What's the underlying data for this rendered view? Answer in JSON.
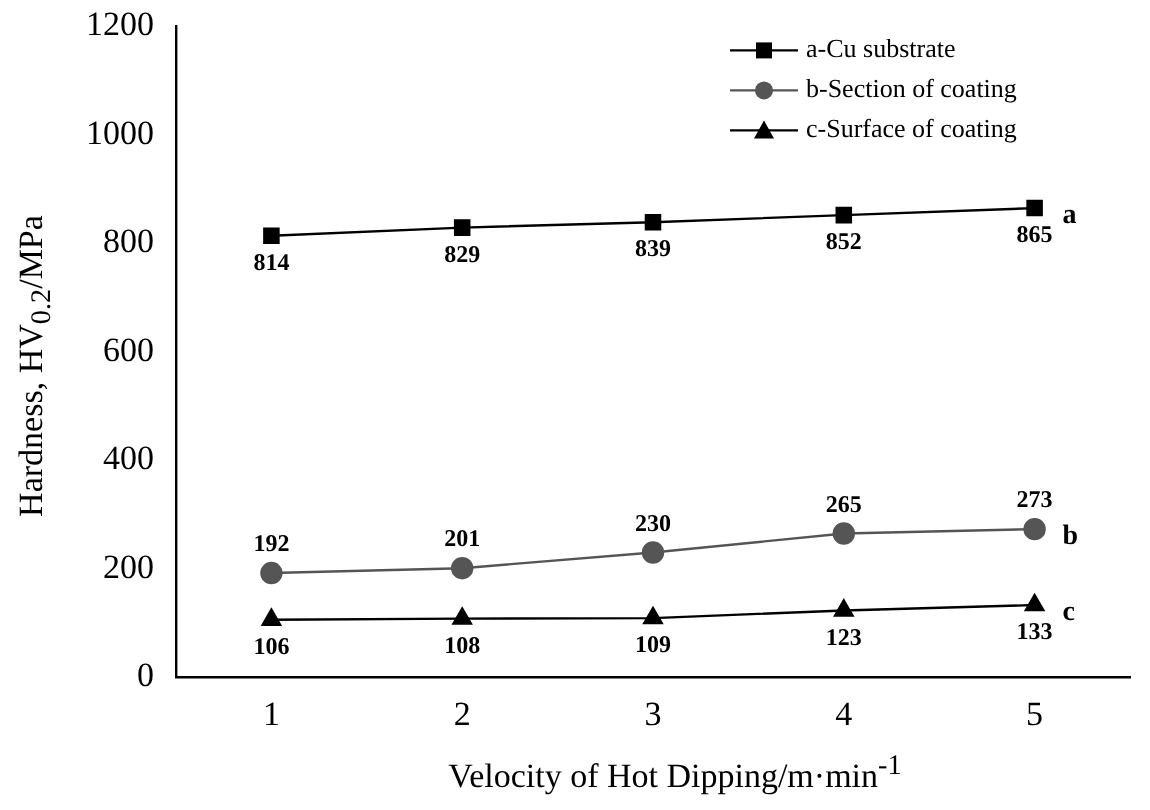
{
  "chart_data": {
    "type": "line",
    "xlabel": "Velocity of Hot Dipping/m·min$^{-1}$",
    "ylabel": "Hardness, HV$_{0.2}$/MPa",
    "x": [
      1,
      2,
      3,
      4,
      5
    ],
    "xlim": [
      0.5,
      5.5
    ],
    "xticks": [
      1,
      2,
      3,
      4,
      5
    ],
    "ylim": [
      0,
      1200
    ],
    "yticks": [
      0,
      200,
      400,
      600,
      800,
      1000,
      1200
    ],
    "series": [
      {
        "name": "a-Cu substrate",
        "color": "#000000",
        "marker": "square",
        "values": [
          814,
          829,
          839,
          852,
          865
        ]
      },
      {
        "name": "b-Section of coating",
        "color": "#555555",
        "marker": "circle",
        "values": [
          192,
          201,
          230,
          265,
          273
        ]
      },
      {
        "name": "c-Surface of coating",
        "color": "#000000",
        "marker": "triangle",
        "values": [
          106,
          108,
          109,
          123,
          133
        ]
      }
    ],
    "data_labels": true,
    "legend": "top right",
    "grid": false,
    "annotations": [
      "a",
      "b",
      "c"
    ]
  }
}
